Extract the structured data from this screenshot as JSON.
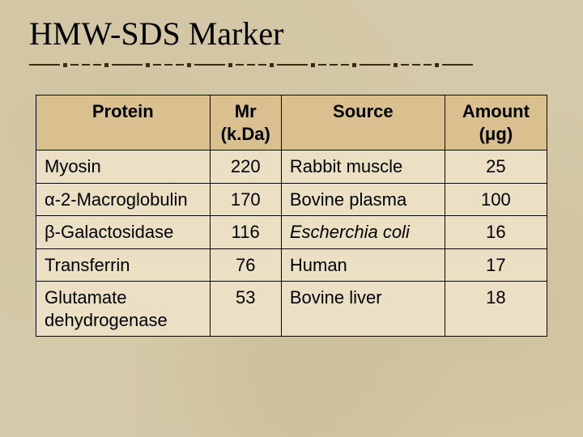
{
  "title": "HMW-SDS Marker",
  "divider": {
    "seg_long_width": 38,
    "seg_short_width": 10,
    "dot_size": 5,
    "color": "#3a2a12"
  },
  "table": {
    "type": "table",
    "background_color": "#ece0c4",
    "header_bg": "#d9c08e",
    "border_color": "#000000",
    "font_family": "Arial",
    "fontsize": 22,
    "columns": [
      {
        "label": "Protein",
        "align": "left",
        "width_pct": 34
      },
      {
        "label": "Mr (k.Da)",
        "align": "center",
        "width_pct": 14
      },
      {
        "label": "Source",
        "align": "left",
        "width_pct": 32
      },
      {
        "label": "Amount (μg)",
        "align": "center",
        "width_pct": 20
      }
    ],
    "rows": [
      {
        "protein": "Myosin",
        "mr": "220",
        "source": "Rabbit muscle",
        "source_italic": false,
        "amount": "25"
      },
      {
        "protein": "α-2-Macroglobulin",
        "mr": "170",
        "source": "Bovine plasma",
        "source_italic": false,
        "amount": "100"
      },
      {
        "protein": "β-Galactosidase",
        "mr": "116",
        "source": "Escherchia coli",
        "source_italic": true,
        "amount": "16"
      },
      {
        "protein": "Transferrin",
        "mr": "76",
        "source": "Human",
        "source_italic": false,
        "amount": "17"
      },
      {
        "protein": "Glutamate dehydrogenase",
        "mr": "53",
        "source": "Bovine liver",
        "source_italic": false,
        "amount": "18"
      }
    ]
  },
  "slide_bg": "#d4c9a8"
}
